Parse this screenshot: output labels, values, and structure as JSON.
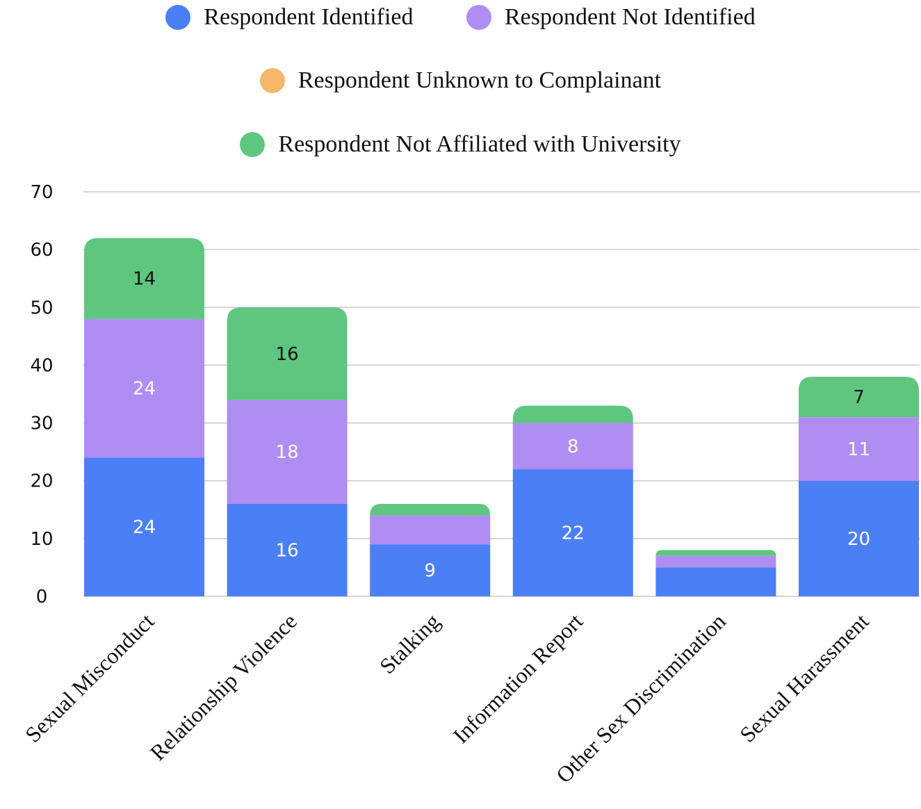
{
  "chart_data": {
    "type": "bar",
    "stacked": true,
    "categories": [
      "Sexual Misconduct",
      "Relationship Violence",
      "Stalking",
      "Information Report",
      "Other Sex Discrimination",
      "Sexual Harassment"
    ],
    "series": [
      {
        "name": "Respondent Identified",
        "color": "#4b7ff5",
        "values": [
          24,
          16,
          9,
          22,
          5,
          20
        ],
        "label_color": "#ffffff",
        "labels": [
          "24",
          "16",
          "9",
          "22",
          "",
          "20"
        ]
      },
      {
        "name": "Respondent Not Identified",
        "color": "#af8df3",
        "values": [
          24,
          18,
          5,
          8,
          2,
          11
        ],
        "label_color": "#ffffff",
        "labels": [
          "24",
          "18",
          "",
          "8",
          "",
          "11"
        ]
      },
      {
        "name": "Respondent Unknown to Complainant",
        "color": "#f5b76a",
        "values": [
          0,
          0,
          0,
          0,
          0,
          0
        ],
        "label_color": "#111111",
        "labels": [
          "",
          "",
          "",
          "",
          "",
          ""
        ]
      },
      {
        "name": "Respondent Not Affiliated with University",
        "color": "#5fc67f",
        "values": [
          14,
          16,
          2,
          3,
          1,
          7
        ],
        "label_color": "#111111",
        "labels": [
          "14",
          "16",
          "",
          "",
          "",
          "7"
        ]
      }
    ],
    "ylim": [
      0,
      70
    ],
    "yticks": [
      0,
      10,
      20,
      30,
      40,
      50,
      60,
      70
    ],
    "grid": true,
    "legend_position": "top"
  }
}
